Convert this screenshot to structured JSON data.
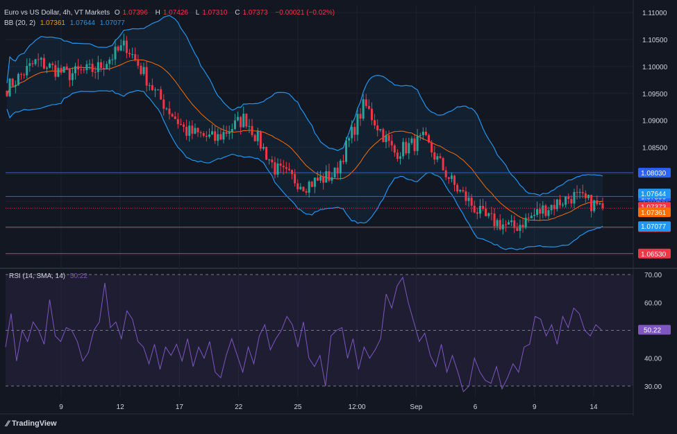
{
  "header": {
    "symbol_title": "Euro vs US Dollar, 4h, VT Markets",
    "ohlc": {
      "o_label": "O",
      "o": "1.07396",
      "h_label": "H",
      "h": "1.07426",
      "l_label": "L",
      "l": "1.07310",
      "c_label": "C",
      "c": "1.07373",
      "change": "−0.00021 (−0.02%)"
    },
    "bb_label": "BB (20, 2)",
    "bb_values": {
      "basis": "1.07361",
      "upper": "1.07644",
      "lower": "1.07077"
    },
    "rsi_label": "RSI (14, SMA, 14)",
    "rsi_value": "50.22"
  },
  "footer": {
    "brand": "TradingView",
    "logo_icon": "tradingview-logo-icon"
  },
  "colors": {
    "background": "#131722",
    "up": "#26a69a",
    "down": "#f23645",
    "bb_band": "#2962ff",
    "bb_basis": "#ff6d00",
    "rsi": "#7e57c2",
    "resistance": "#2962ff",
    "support": "#f23645"
  },
  "chart_data": [
    {
      "type": "candlestick",
      "title": "Euro vs US Dollar, 4h, VT Markets",
      "x_tick_labels": [
        "9",
        "12",
        "17",
        "22",
        "25",
        "12:00",
        "Sep",
        "6",
        "9",
        "14"
      ],
      "y_axis": {
        "ylim": [
          1.0627,
          1.1113
        ],
        "ticks": [
          "1.11000",
          "1.10500",
          "1.10000",
          "1.09500",
          "1.09000",
          "1.08500",
          "1.08000",
          "1.07500",
          "1.07000",
          "1.06500"
        ]
      },
      "approx_close_path": [
        {
          "x": "start",
          "close": 1.096
        },
        {
          "x": "",
          "close": 1.101
        },
        {
          "x": "9",
          "close": 1.0985
        },
        {
          "x": "",
          "close": 1.0995
        },
        {
          "x": "12",
          "close": 1.104
        },
        {
          "x": "",
          "close": 1.095
        },
        {
          "x": "17",
          "close": 1.088
        },
        {
          "x": "",
          "close": 1.0865
        },
        {
          "x": "22",
          "close": 1.0905
        },
        {
          "x": "",
          "close": 1.081
        },
        {
          "x": "25",
          "close": 1.078
        },
        {
          "x": "",
          "close": 1.08
        },
        {
          "x": "12:00",
          "close": 1.093
        },
        {
          "x": "",
          "close": 1.084
        },
        {
          "x": "Sep",
          "close": 1.0865
        },
        {
          "x": "",
          "close": 1.078
        },
        {
          "x": "6",
          "close": 1.072
        },
        {
          "x": "",
          "close": 1.07
        },
        {
          "x": "9",
          "close": 1.0735
        },
        {
          "x": "",
          "close": 1.076
        },
        {
          "x": "14",
          "close": 1.07373
        }
      ],
      "horizontal_levels": [
        {
          "value": 1.0803,
          "label": "1.08030",
          "style": "resistance"
        },
        {
          "value": 1.0759,
          "label": "1.07590",
          "style": "resistance"
        },
        {
          "value": 1.0702,
          "label": "1.07020",
          "style": "support"
        },
        {
          "value": 1.0653,
          "label": "1.06530",
          "style": "support"
        }
      ],
      "price_labels": [
        {
          "value": 1.07644,
          "label": "1.07644",
          "kind": "bb_upper"
        },
        {
          "value": 1.07373,
          "label": "1.07373",
          "kind": "last_price"
        },
        {
          "value": 1.07361,
          "label": "1.07361",
          "kind": "bb_basis"
        },
        {
          "value": 1.07077,
          "label": "1.07077",
          "kind": "bb_lower"
        }
      ],
      "bollinger": {
        "period": 20,
        "mult": 2,
        "basis": 1.07361,
        "upper": 1.07644,
        "lower": 1.07077
      }
    },
    {
      "type": "line",
      "title": "RSI (14, SMA, 14)",
      "y_axis": {
        "ylim": [
          26,
          72
        ],
        "ticks": [
          "70.00",
          "60.00",
          "40.00",
          "30.00"
        ],
        "dashed_levels": [
          70,
          50,
          30
        ]
      },
      "series": [
        {
          "values": [
            44,
            56,
            39,
            50,
            46,
            53,
            50,
            45,
            61,
            48,
            46,
            51,
            50,
            46,
            39,
            42,
            50,
            53,
            67,
            51,
            53,
            47,
            57,
            54,
            46,
            44,
            38,
            45,
            36,
            44,
            41,
            45,
            39,
            47,
            37,
            44,
            40,
            46,
            35,
            33,
            41,
            47,
            41,
            35,
            44,
            38,
            48,
            52,
            43,
            47,
            50,
            55,
            52,
            44,
            53,
            40,
            37,
            41,
            30,
            48,
            50,
            51,
            40,
            47,
            36,
            44,
            40,
            43,
            47,
            63,
            58,
            66,
            69,
            60,
            53,
            46,
            49,
            41,
            37,
            45,
            35,
            41,
            35,
            28,
            30,
            40,
            35,
            32,
            31,
            37,
            29,
            33,
            38,
            35,
            44,
            45,
            55,
            54,
            48,
            52,
            45,
            55,
            51,
            58,
            56,
            50,
            48,
            52,
            50.22
          ]
        }
      ]
    }
  ]
}
